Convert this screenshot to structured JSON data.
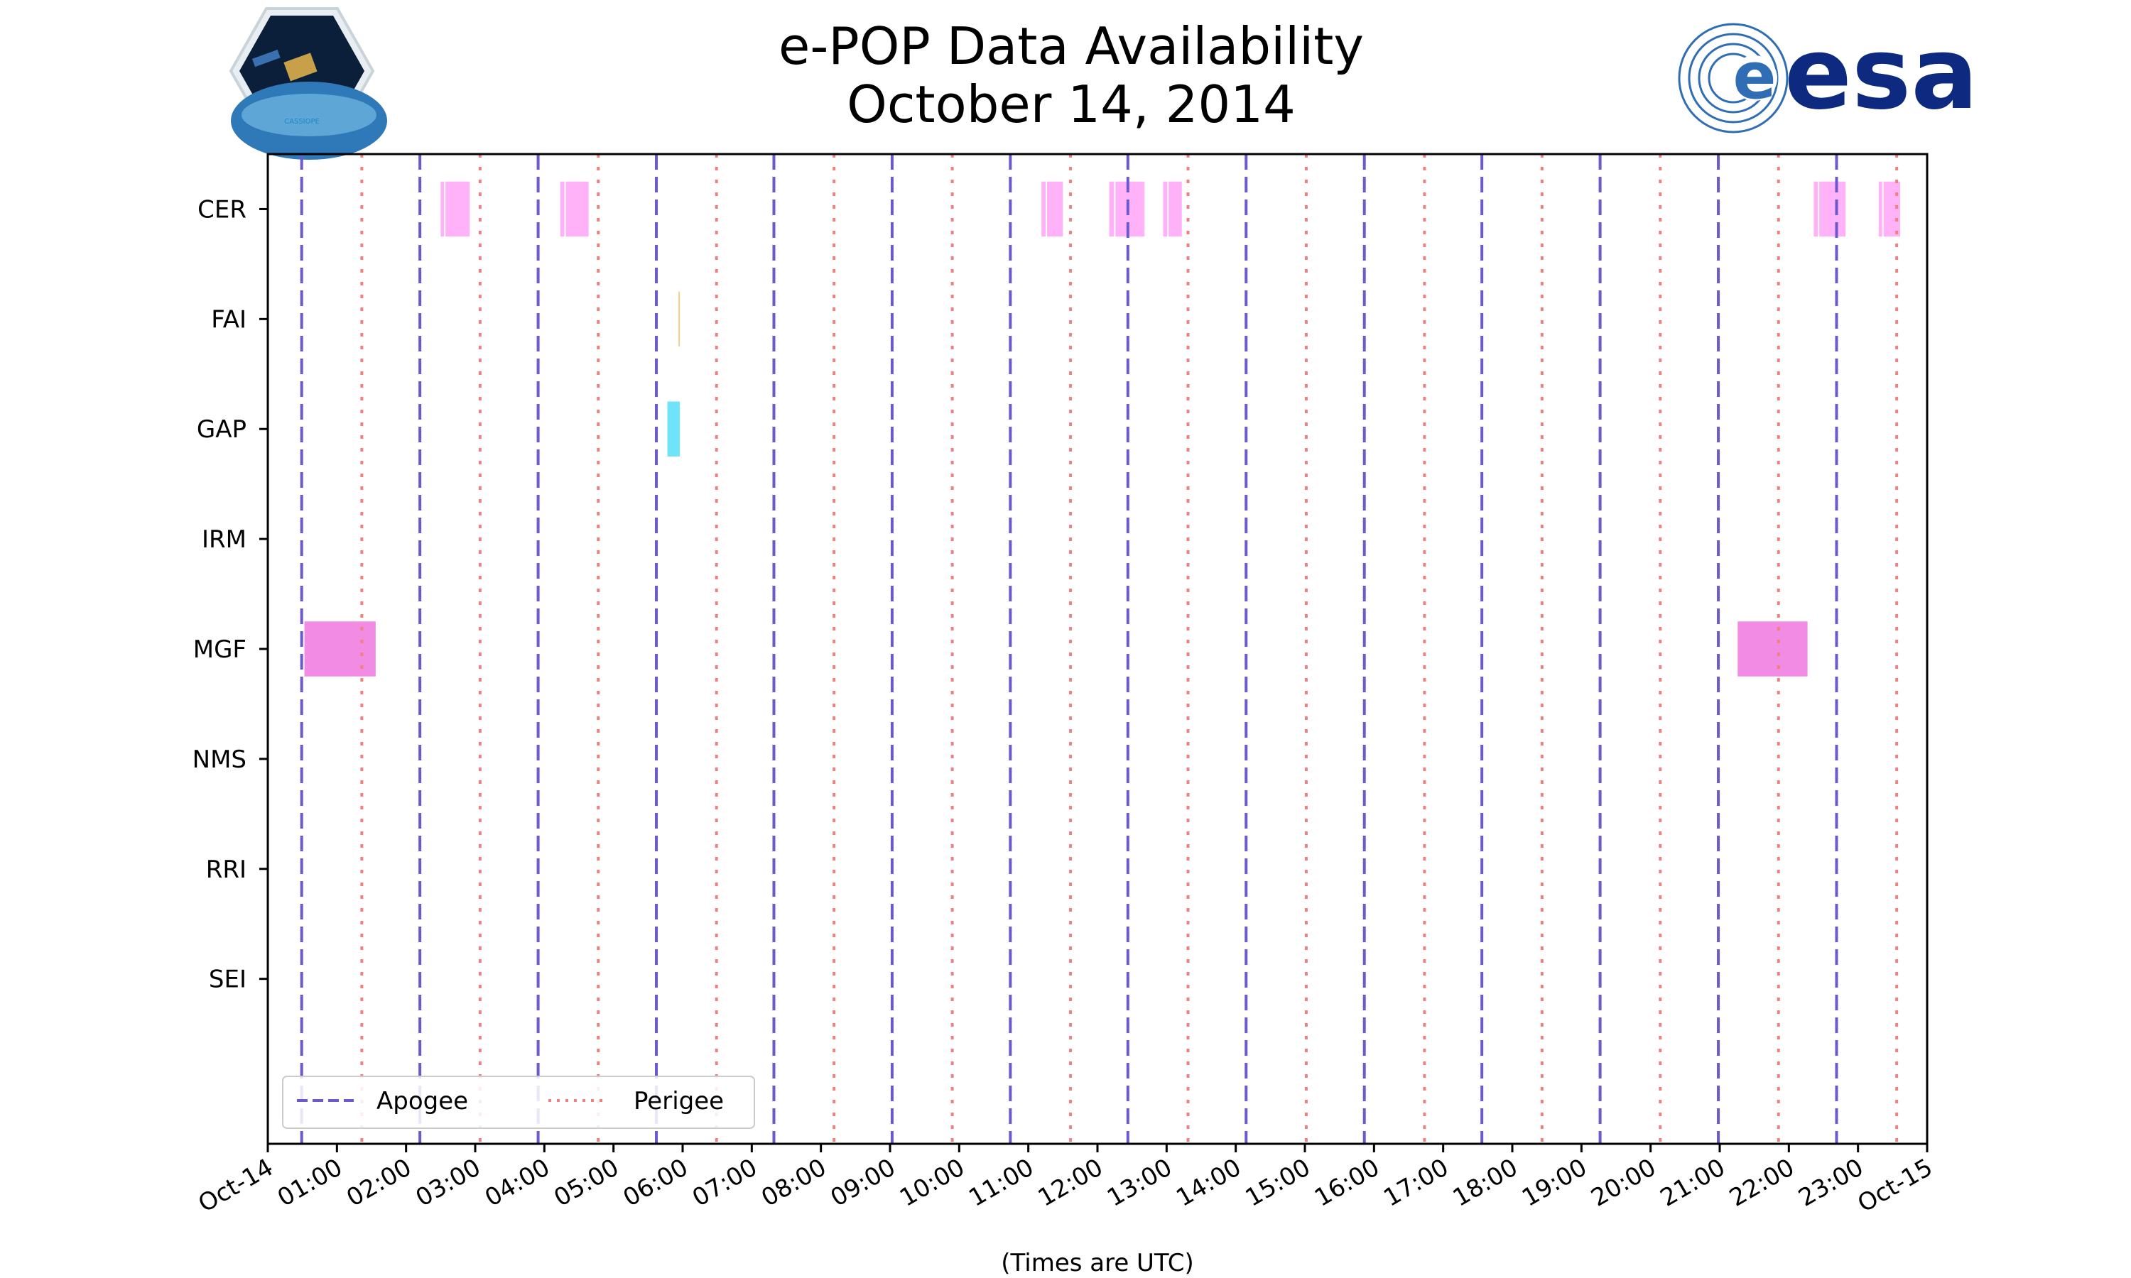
{
  "chart_data": {
    "type": "timeline",
    "title": "e-POP Data Availability",
    "subtitle": "October 14, 2014",
    "xlabel": "(Times are UTC)",
    "ylabel": "",
    "xlim_hours": [
      0,
      24
    ],
    "x_tick_labels": [
      "Oct-14",
      "01:00",
      "02:00",
      "03:00",
      "04:00",
      "05:00",
      "06:00",
      "07:00",
      "08:00",
      "09:00",
      "10:00",
      "11:00",
      "12:00",
      "13:00",
      "14:00",
      "15:00",
      "16:00",
      "17:00",
      "18:00",
      "19:00",
      "20:00",
      "21:00",
      "22:00",
      "23:00",
      "Oct-15"
    ],
    "categories": [
      "CER",
      "FAI",
      "GAP",
      "IRM",
      "MGF",
      "NMS",
      "RRI",
      "SEI"
    ],
    "ylim": [
      -0.5,
      8.5
    ],
    "colors": {
      "apogee": "#6a5acd",
      "perigee": "#f08080",
      "CER": "#ffaaf6",
      "FAI": "#f5c77a",
      "GAP": "#5ee0fa",
      "MGF": "#ef7ee0"
    },
    "intervals_hours": {
      "CER": [
        [
          2.5,
          2.55
        ],
        [
          2.57,
          2.92
        ],
        [
          4.23,
          4.29
        ],
        [
          4.31,
          4.64
        ],
        [
          11.19,
          11.25
        ],
        [
          11.27,
          11.5
        ],
        [
          12.17,
          12.24
        ],
        [
          12.26,
          12.68
        ],
        [
          12.95,
          13.01
        ],
        [
          13.03,
          13.22
        ],
        [
          22.36,
          22.42
        ],
        [
          22.44,
          22.82
        ],
        [
          23.3,
          23.35
        ],
        [
          23.37,
          23.61
        ]
      ],
      "FAI": [
        [
          5.94,
          5.96
        ]
      ],
      "GAP": [
        [
          5.78,
          5.96
        ]
      ],
      "IRM": [],
      "MGF": [
        [
          0.53,
          1.56
        ],
        [
          21.26,
          22.27
        ]
      ],
      "NMS": [],
      "RRI": [],
      "SEI": []
    },
    "apogee_hours": [
      0.49,
      2.2,
      3.91,
      5.62,
      7.32,
      9.03,
      10.74,
      12.44,
      14.15,
      15.86,
      17.56,
      19.27,
      20.98,
      22.69
    ],
    "perigee_hours": [
      1.36,
      3.07,
      4.78,
      6.49,
      8.19,
      9.9,
      11.61,
      13.31,
      15.02,
      16.73,
      18.43,
      20.14,
      21.85,
      23.56
    ],
    "legend": {
      "placement": "lower-left",
      "entries": [
        "Apogee",
        "Perigee"
      ]
    }
  },
  "logos": {
    "left": "CASSIOPE",
    "right": "esa"
  }
}
